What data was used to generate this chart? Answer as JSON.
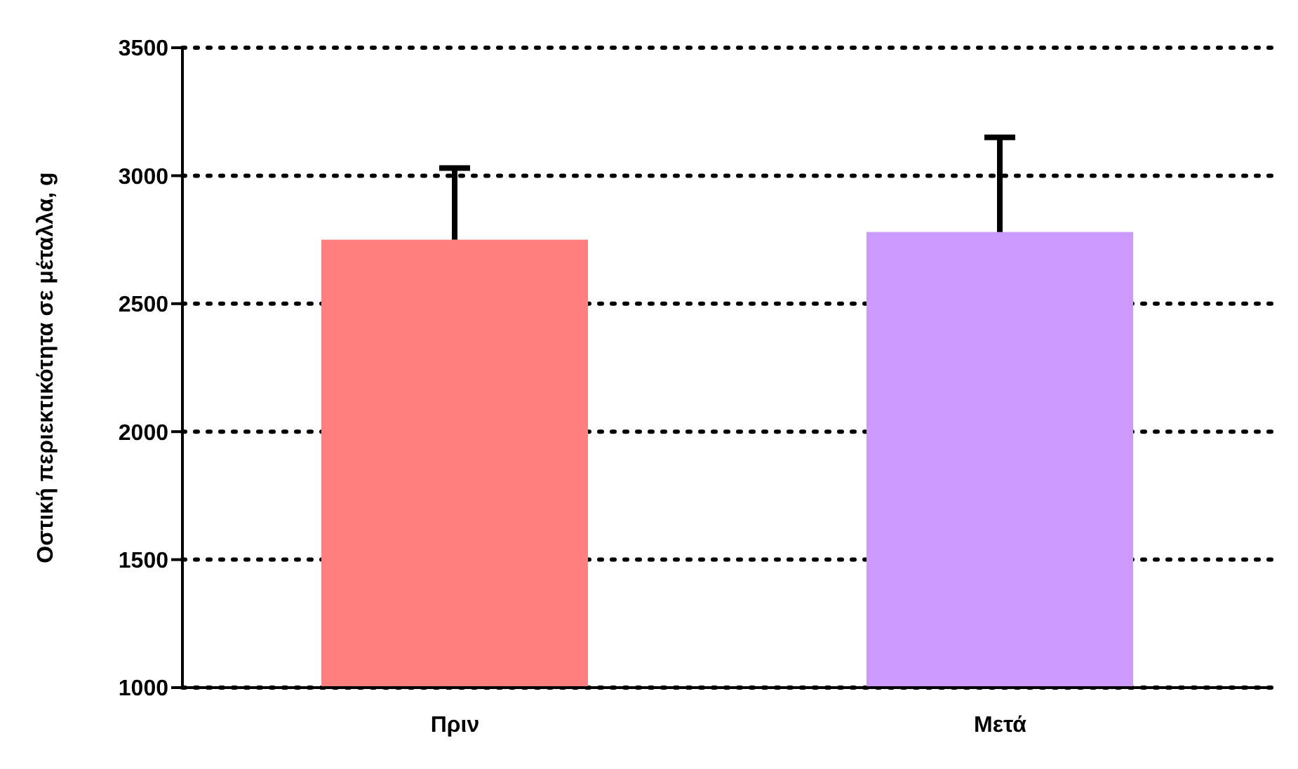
{
  "chart_data": {
    "type": "bar",
    "ylabel": "Οστική περιεκτικότητα σε μέταλλα, g",
    "categories": [
      "Πριν",
      "Μετά"
    ],
    "values": [
      2750,
      2780
    ],
    "colors": [
      "#ff7f7f",
      "#cc99ff"
    ],
    "errors": [
      [
        2750,
        3030
      ],
      [
        2780,
        3150
      ]
    ],
    "ylim": [
      1000,
      3500
    ],
    "yticks": [
      1000,
      1500,
      2000,
      2500,
      3000,
      3500
    ],
    "grid": "y"
  }
}
